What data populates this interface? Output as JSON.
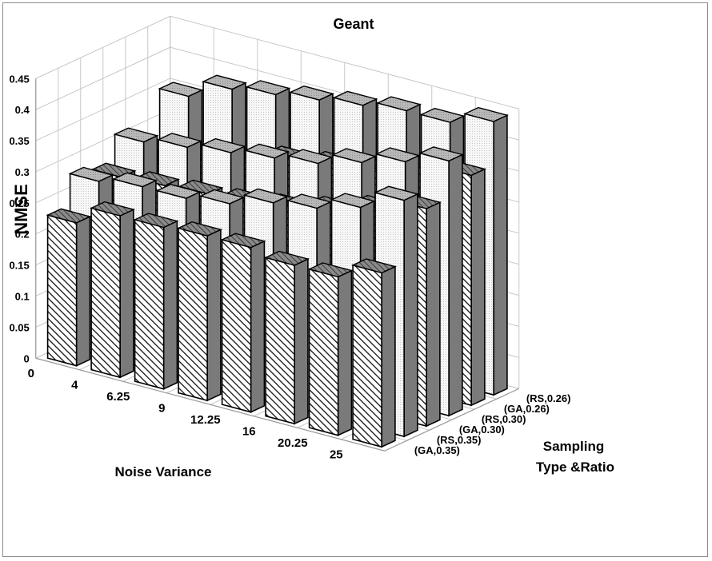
{
  "chart_data": {
    "type": "bar",
    "title": "Geant",
    "ylabel": "NMSE",
    "xlabel": "Noise Variance",
    "zlabel_line1": "Sampling",
    "zlabel_line2": "Type &Ratio",
    "ylim": [
      0,
      0.45
    ],
    "yticks": [
      "0",
      "0.05",
      "0.1",
      "0.15",
      "0.2",
      "0.25",
      "0.3",
      "0.35",
      "0.4",
      "0.45"
    ],
    "categories": [
      "0",
      "4",
      "6.25",
      "9",
      "12.25",
      "16",
      "20.25",
      "25"
    ],
    "series": [
      {
        "name": "(GA,0.35)",
        "pattern": "diagonal-hatch",
        "values": [
          0.23,
          0.26,
          0.26,
          0.265,
          0.265,
          0.255,
          0.255,
          0.28
        ]
      },
      {
        "name": "(RS,0.35)",
        "pattern": "light-dots",
        "values": [
          0.28,
          0.29,
          0.29,
          0.3,
          0.32,
          0.33,
          0.35,
          0.38
        ]
      },
      {
        "name": "(GA,0.30)",
        "pattern": "diagonal-hatch",
        "values": [
          0.27,
          0.275,
          0.28,
          0.285,
          0.295,
          0.31,
          0.33,
          0.35
        ]
      },
      {
        "name": "(RS,0.30)",
        "pattern": "light-dots",
        "values": [
          0.31,
          0.32,
          0.33,
          0.34,
          0.35,
          0.37,
          0.39,
          0.41
        ]
      },
      {
        "name": "(GA,0.26)",
        "pattern": "diagonal-hatch",
        "values": [
          0.26,
          0.28,
          0.3,
          0.32,
          0.33,
          0.34,
          0.36,
          0.37
        ]
      },
      {
        "name": "(RS,0.26)",
        "pattern": "light-dots",
        "values": [
          0.35,
          0.38,
          0.39,
          0.4,
          0.41,
          0.42,
          0.42,
          0.44
        ]
      }
    ],
    "grid": true,
    "colors": {
      "side": "#7a7a7a",
      "front_light": "#f2f2f2",
      "hatch": "#000000",
      "grid": "#c8c8c8",
      "outline": "#000000"
    }
  }
}
